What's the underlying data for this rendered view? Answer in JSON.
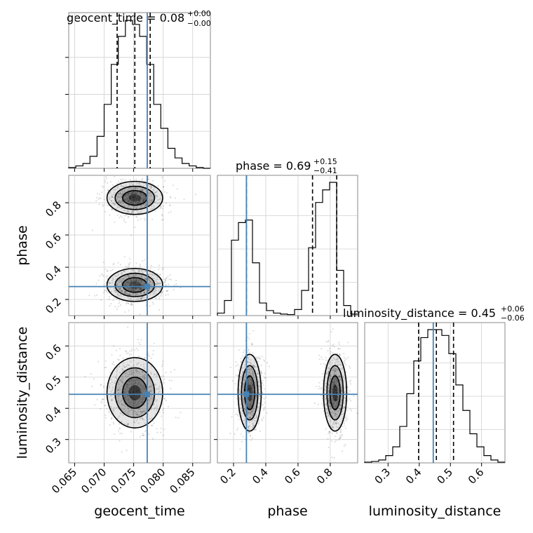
{
  "chart_data": {
    "type": "corner",
    "parameters": [
      "geocent_time",
      "phase",
      "luminosity_distance"
    ],
    "truth_color": "#4682b4",
    "truths": {
      "geocent_time": 0.0773,
      "phase": 0.28,
      "luminosity_distance": 0.445
    },
    "titles": [
      {
        "param": "geocent_time",
        "main": "geocent_time = 0.08",
        "sup": "+0.00",
        "sub": "−0.00"
      },
      {
        "param": "phase",
        "main": "phase = 0.69",
        "sup": "+0.15",
        "sub": "−0.41"
      },
      {
        "param": "luminosity_distance",
        "main": "luminosity_distance = 0.45",
        "sup": "+0.06",
        "sub": "−0.06"
      }
    ],
    "axis_labels": [
      "geocent_time",
      "phase",
      "luminosity_distance"
    ],
    "ranges": {
      "geocent_time": [
        0.064,
        0.088
      ],
      "phase": [
        0.1,
        0.97
      ],
      "luminosity_distance": [
        0.225,
        0.675
      ]
    },
    "ticks": {
      "geocent_time": [
        "0.065",
        "0.070",
        "0.075",
        "0.080",
        "0.085"
      ],
      "phase_x": [
        "0.2",
        "0.4",
        "0.6",
        "0.8"
      ],
      "phase_y": [
        "0.2",
        "0.4",
        "0.6",
        "0.8"
      ],
      "luminosity_distance": [
        "0.3",
        "0.4",
        "0.5",
        "0.6"
      ]
    },
    "quantiles": {
      "geocent_time": [
        0.0722,
        0.0752,
        0.0778
      ],
      "phase": [
        0.28,
        0.69,
        0.84
      ],
      "luminosity_distance": [
        0.398,
        0.455,
        0.51
      ]
    },
    "histograms": {
      "geocent_time": {
        "edges": [
          0.064,
          0.0652,
          0.0664,
          0.0676,
          0.0688,
          0.07,
          0.0712,
          0.0724,
          0.0736,
          0.0748,
          0.076,
          0.0772,
          0.0784,
          0.0796,
          0.0808,
          0.082,
          0.0832,
          0.0844,
          0.0856,
          0.0868,
          0.088
        ],
        "counts": [
          1,
          3,
          6,
          15,
          40,
          80,
          130,
          165,
          185,
          180,
          165,
          130,
          80,
          50,
          25,
          13,
          6,
          3,
          1,
          0
        ]
      },
      "phase": {
        "edges": [
          0.1,
          0.1435,
          0.187,
          0.2305,
          0.274,
          0.3175,
          0.361,
          0.4045,
          0.448,
          0.4915,
          0.535,
          0.5785,
          0.622,
          0.6655,
          0.709,
          0.7525,
          0.796,
          0.8395,
          0.883,
          0.9265,
          0.97
        ],
        "counts": [
          5,
          30,
          150,
          185,
          190,
          105,
          25,
          10,
          5,
          3,
          2,
          12,
          50,
          135,
          225,
          250,
          265,
          90,
          20,
          3
        ]
      },
      "luminosity_distance": {
        "edges": [
          0.225,
          0.2475,
          0.27,
          0.2925,
          0.315,
          0.3375,
          0.36,
          0.3825,
          0.405,
          0.4275,
          0.45,
          0.4725,
          0.495,
          0.5175,
          0.54,
          0.5625,
          0.585,
          0.6075,
          0.63,
          0.6525,
          0.675
        ],
        "counts": [
          1,
          2,
          4,
          10,
          22,
          50,
          95,
          140,
          172,
          183,
          183,
          175,
          150,
          107,
          72,
          40,
          22,
          10,
          4,
          1
        ]
      }
    },
    "blobs": {
      "phase_vs_geocent_time": [
        {
          "cx": 0.0752,
          "cy": 0.83,
          "sx": 0.0023,
          "sy": 0.05,
          "dark": 0.8
        },
        {
          "cx": 0.0752,
          "cy": 0.29,
          "sx": 0.0023,
          "sy": 0.05,
          "dark": 0.62
        }
      ],
      "luminosity_distance_vs_geocent_time": [
        {
          "cx": 0.0752,
          "cy": 0.45,
          "sx": 0.0023,
          "sy": 0.055,
          "dark": 0.92
        }
      ],
      "luminosity_distance_vs_phase": [
        {
          "cx": 0.3,
          "cy": 0.45,
          "sx": 0.035,
          "sy": 0.06,
          "dark": 0.72
        },
        {
          "cx": 0.83,
          "cy": 0.45,
          "sx": 0.035,
          "sy": 0.06,
          "dark": 0.88
        }
      ]
    },
    "grid": true,
    "contour_levels": 3
  }
}
